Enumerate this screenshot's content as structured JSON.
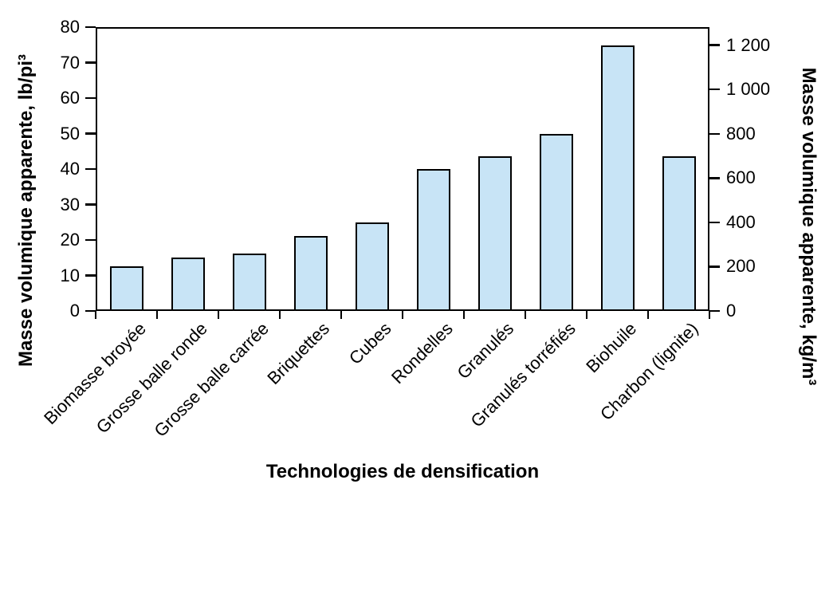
{
  "chart_data": {
    "type": "bar",
    "title": "",
    "xlabel": "Technologies de densification",
    "ylabel_left": "Masse volumique apparente, lb/pi³",
    "ylabel_right": "Masse volumique apparente, kg/m³",
    "categories": [
      "Biomasse broyée",
      "Grosse balle ronde",
      "Grosse balle carrée",
      "Briquettes",
      "Cubes",
      "Rondelles",
      "Granulés",
      "Granulés torréfiés",
      "Biohuile",
      "Charbon (lignite)"
    ],
    "values_kg_m3": [
      200,
      240,
      260,
      340,
      400,
      640,
      700,
      800,
      1200,
      700
    ],
    "values_lb_pi3": [
      12.5,
      15.0,
      16.2,
      21.2,
      25.0,
      40.0,
      43.7,
      49.9,
      74.9,
      43.7
    ],
    "left_axis": {
      "unit": "lb/pi³",
      "min": 0,
      "max": 80,
      "step": 10,
      "tick_labels": [
        "0",
        "10",
        "20",
        "30",
        "40",
        "50",
        "60",
        "70",
        "80"
      ]
    },
    "right_axis": {
      "unit": "kg/m³",
      "min": 0,
      "max": 1200,
      "step": 200,
      "tick_values": [
        0,
        200,
        400,
        600,
        800,
        1000,
        1200
      ],
      "tick_labels": [
        "0",
        "200",
        "400",
        "600",
        "800",
        "1 000",
        "1 200"
      ],
      "kg_per_lb_pi3": 16.0185
    },
    "grid": false,
    "legend": false,
    "bar_fill": "#c8e4f6",
    "bar_border": "#000000",
    "axis_color": "#000000",
    "background": "#ffffff"
  }
}
